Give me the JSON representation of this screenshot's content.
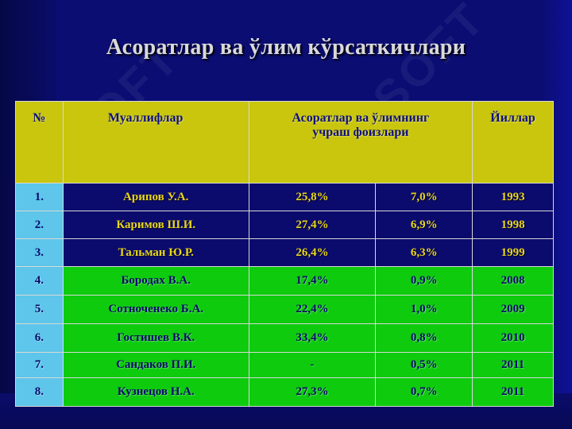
{
  "slide": {
    "title": "Асоратлар ва ўлим кўрсаткичлари",
    "watermark": "SOFT"
  },
  "table": {
    "headers": {
      "number": "№",
      "authors": "Муаллифлар",
      "rates": "Асоратлар ва ўлимнинг учраш фоизлари",
      "years": "Йиллар"
    },
    "rows": [
      {
        "num": "1.",
        "author": "Арипов У.А.",
        "complications": "25,8%",
        "mortality": "7,0%",
        "year": "1993"
      },
      {
        "num": "2.",
        "author": "Каримов Ш.И.",
        "complications": "27,4%",
        "mortality": "6,9%",
        "year": "1998"
      },
      {
        "num": "3.",
        "author": "Тальман Ю.Р.",
        "complications": "26,4%",
        "mortality": "6,3%",
        "year": "1999"
      },
      {
        "num": "4.",
        "author": "Бородах В.А.",
        "complications": "17,4%",
        "mortality": "0,9%",
        "year": "2008"
      },
      {
        "num": "5.",
        "author": "Сотноченеко Б.А.",
        "complications": "22,4%",
        "mortality": "1,0%",
        "year": "2009"
      },
      {
        "num": "6.",
        "author": "Гостишев В.К.",
        "complications": "33,4%",
        "mortality": "0,8%",
        "year": "2010"
      },
      {
        "num": "7.",
        "author": "Сандаков П.И.",
        "complications": "-",
        "mortality": "0,5%",
        "year": "2011"
      },
      {
        "num": "8.",
        "author": "Кузнецов Н.А.",
        "complications": "27,3%",
        "mortality": "0,7%",
        "year": "2011"
      }
    ]
  },
  "colors": {
    "background": "#0b0d73",
    "header": "#c9c60d",
    "navy_row": "#0b0b6d",
    "green_row": "#0ecb0e",
    "number_cell": "#5dc6ea",
    "navy_text": "#e8d619"
  }
}
